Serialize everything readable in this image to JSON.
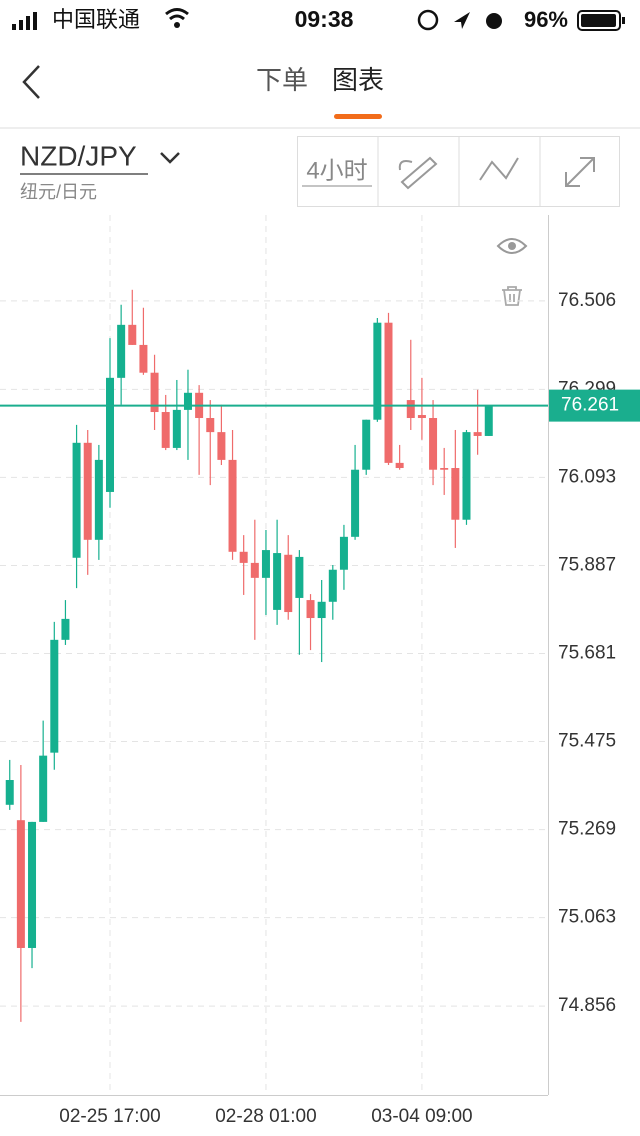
{
  "status_bar": {
    "carrier": "中国联通",
    "time": "09:38",
    "battery": "96%"
  },
  "nav": {
    "tabs": [
      "下单",
      "图表"
    ]
  },
  "header": {
    "symbol": "NZD/JPY",
    "subtitle": "纽元/日元",
    "timeframe": "4小时"
  },
  "chart_data": {
    "type": "candlestick",
    "categories": [
      null,
      null,
      null,
      null,
      null,
      null,
      null,
      null,
      null,
      "02-25 17:00",
      null,
      null,
      null,
      null,
      null,
      null,
      null,
      null,
      null,
      null,
      null,
      null,
      null,
      "02-28 01:00",
      null,
      null,
      null,
      null,
      null,
      null,
      null,
      null,
      null,
      null,
      null,
      null,
      null,
      "03-04 09:00",
      null,
      null,
      null,
      null,
      null,
      null
    ],
    "open": [
      75.327,
      75.291,
      74.992,
      75.287,
      75.449,
      75.713,
      75.905,
      76.174,
      75.947,
      76.059,
      76.326,
      76.45,
      76.403,
      76.338,
      76.246,
      76.162,
      76.251,
      76.291,
      76.232,
      76.199,
      76.134,
      75.919,
      75.893,
      75.858,
      75.783,
      75.912,
      75.811,
      75.806,
      75.764,
      75.802,
      75.877,
      75.954,
      76.111,
      76.228,
      76.455,
      76.127,
      76.274,
      76.239,
      76.232,
      76.115,
      76.115,
      75.994,
      76.199,
      76.19
    ],
    "high": [
      75.432,
      75.42,
      75.287,
      75.524,
      75.755,
      75.806,
      76.216,
      76.204,
      76.169,
      76.419,
      76.497,
      76.532,
      76.49,
      76.38,
      76.286,
      76.321,
      76.345,
      76.309,
      76.274,
      76.263,
      76.204,
      75.958,
      75.994,
      75.97,
      75.994,
      75.958,
      75.923,
      75.82,
      75.853,
      75.888,
      75.982,
      76.169,
      76.228,
      76.466,
      76.478,
      76.169,
      76.415,
      76.326,
      76.274,
      76.162,
      76.204,
      76.204,
      76.298,
      76.261
    ],
    "low": [
      75.315,
      74.819,
      74.945,
      75.287,
      75.409,
      75.701,
      75.834,
      75.865,
      75.9,
      76.022,
      76.263,
      76.403,
      76.333,
      76.204,
      76.157,
      76.157,
      76.134,
      76.099,
      76.075,
      76.122,
      75.9,
      75.818,
      75.713,
      75.771,
      75.748,
      75.76,
      75.678,
      75.689,
      75.661,
      75.76,
      75.83,
      75.947,
      76.099,
      76.223,
      76.122,
      76.111,
      76.204,
      76.181,
      76.075,
      76.052,
      75.928,
      75.982,
      76.146,
      76.19
    ],
    "close": [
      75.385,
      74.992,
      75.287,
      75.442,
      75.713,
      75.762,
      76.174,
      75.947,
      76.134,
      76.326,
      76.45,
      76.403,
      76.338,
      76.246,
      76.162,
      76.251,
      76.291,
      76.232,
      76.199,
      76.134,
      75.919,
      75.893,
      75.858,
      75.923,
      75.916,
      75.778,
      75.907,
      75.764,
      75.802,
      75.877,
      75.954,
      76.111,
      76.228,
      76.455,
      76.127,
      76.115,
      76.232,
      76.232,
      76.111,
      76.111,
      75.994,
      76.199,
      76.19,
      76.261
    ],
    "up_color": "#15b08f",
    "down_color": "#ef6b6b",
    "ylim": [
      74.648,
      76.707
    ],
    "yticks": [
      74.856,
      75.063,
      75.269,
      75.475,
      75.681,
      75.887,
      76.093,
      76.299,
      76.506
    ],
    "last_price": 76.261,
    "last_price_color": "#1aae8e",
    "grid": true
  }
}
